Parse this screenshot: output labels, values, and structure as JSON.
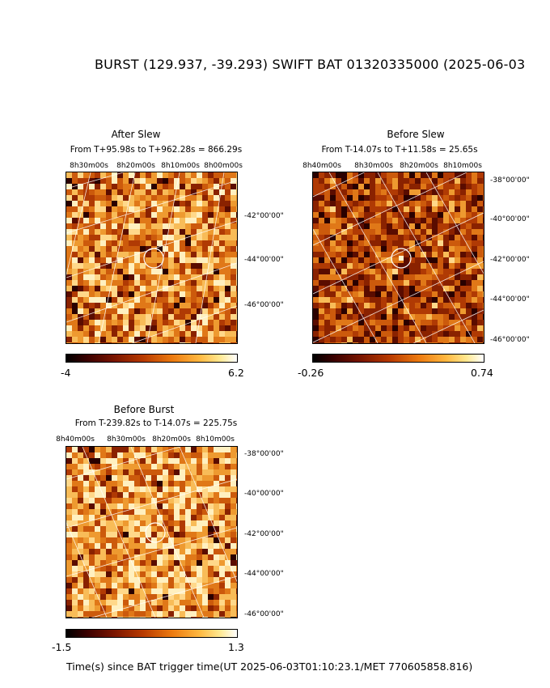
{
  "title": "BURST (129.937, -39.293) SWIFT BAT 01320335000 (2025-06-03",
  "footer": "Time(s) since BAT trigger time(UT 2025-06-03T01:10:23.1/MET 770605858.816)",
  "panels": {
    "after_slew": {
      "title": "After Slew",
      "subtitle": "From T+95.98s to T+962.28s = 866.29s",
      "ra_labels": [
        "8h30m00s",
        "8h20m00s",
        "8h10m00s",
        "8h00m00s"
      ],
      "dec_labels": [
        "-42°00'00\"",
        "-44°00'00\"",
        "-46°00'00\""
      ],
      "cbar_min": "-4",
      "cbar_max": "6.2"
    },
    "before_slew": {
      "title": "Before Slew",
      "subtitle": "From T-14.07s to T+11.58s = 25.65s",
      "ra_labels": [
        "8h40m00s",
        "8h30m00s",
        "8h20m00s",
        "8h10m00s"
      ],
      "dec_labels": [
        "-38°00'00\"",
        "-40°00'00\"",
        "-42°00'00\"",
        "-44°00'00\"",
        "-46°00'00\""
      ],
      "cbar_min": "-0.26",
      "cbar_max": "0.74"
    },
    "before_burst": {
      "title": "Before Burst",
      "subtitle": "From T-239.82s to T-14.07s = 225.75s",
      "ra_labels": [
        "8h40m00s",
        "8h30m00s",
        "8h20m00s",
        "8h10m00s"
      ],
      "dec_labels": [
        "-38°00'00\"",
        "-40°00'00\"",
        "-42°00'00\"",
        "-44°00'00\"",
        "-46°00'00\""
      ],
      "cbar_min": "-1.5",
      "cbar_max": "1.3"
    }
  },
  "colors": {
    "after_slew_base": "#e07818",
    "before_slew_base": "#9a2e06",
    "before_burst_base": "#f09a30"
  }
}
